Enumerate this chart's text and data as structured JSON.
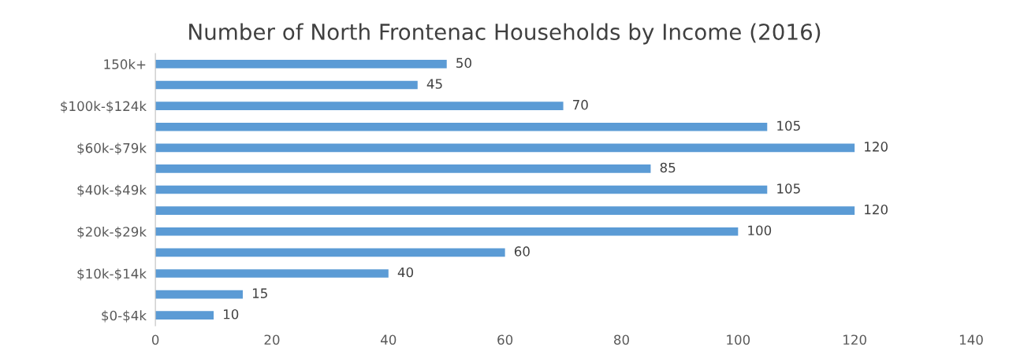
{
  "chart_data": {
    "type": "bar",
    "orientation": "horizontal",
    "title": "Number of North Frontenac Households by Income (2016)",
    "categories": [
      "150k+",
      null,
      "$100k-$124k",
      null,
      "$60k-$79k",
      null,
      "$40k-$49k",
      null,
      "$20k-$29k",
      null,
      "$10k-$14k",
      null,
      "$0-$4k"
    ],
    "values": [
      50,
      45,
      70,
      105,
      120,
      85,
      105,
      120,
      100,
      60,
      40,
      15,
      10
    ],
    "color": "#5b9bd5",
    "xlim": [
      0,
      140
    ],
    "xticks": [
      0,
      20,
      40,
      60,
      80,
      100,
      120,
      140
    ],
    "grid": false,
    "legend": false,
    "data_labels": true
  }
}
